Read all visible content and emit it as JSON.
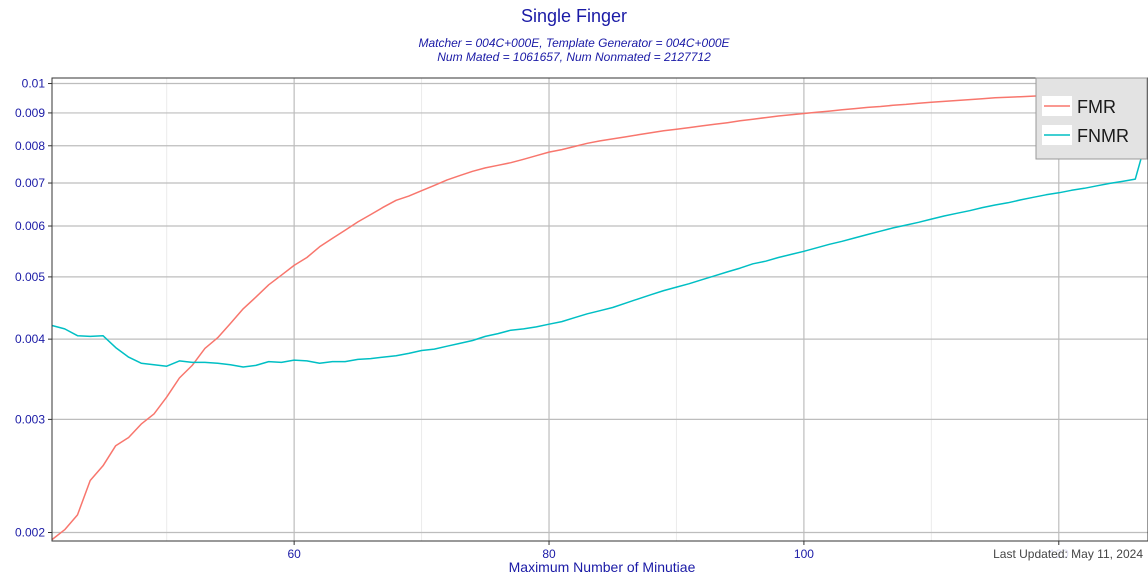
{
  "chart_data": {
    "type": "line",
    "title": "Single Finger",
    "subtitle_lines": [
      "Matcher = 004C+000E, Template Generator = 004C+000E",
      "Num Mated = 1061657, Num Nonmated = 2127712"
    ],
    "xlabel": "Maximum Number of Minutiae",
    "ylabel": "",
    "y_scale": "log",
    "xlim": [
      41,
      127
    ],
    "ylim": [
      0.00194,
      0.0102
    ],
    "x_ticks": [
      60,
      80,
      100,
      120
    ],
    "y_ticks": [
      0.002,
      0.003,
      0.004,
      0.005,
      0.006,
      0.007,
      0.008,
      0.009,
      0.01
    ],
    "y_tick_labels": [
      "0.002",
      "0.003",
      "0.004",
      "0.005",
      "0.006",
      "0.007",
      "0.008",
      "0.009",
      "0.01"
    ],
    "x_tick_labels": [
      "60",
      "80",
      "100",
      "120"
    ],
    "grid": true,
    "legend_position": "top-right",
    "annotation": "Last Updated: May 11, 2024",
    "series": [
      {
        "name": "FMR",
        "color": "#f8766d",
        "x": [
          41,
          42,
          43,
          44,
          45,
          46,
          47,
          48,
          49,
          50,
          51,
          52,
          53,
          54,
          55,
          56,
          57,
          58,
          59,
          60,
          61,
          62,
          63,
          64,
          65,
          66,
          67,
          68,
          69,
          70,
          71,
          72,
          73,
          74,
          75,
          76,
          77,
          78,
          79,
          80,
          81,
          82,
          83,
          84,
          85,
          86,
          87,
          88,
          89,
          90,
          91,
          92,
          93,
          94,
          95,
          96,
          97,
          98,
          99,
          100,
          101,
          102,
          103,
          104,
          105,
          106,
          107,
          108,
          109,
          110,
          111,
          112,
          113,
          114,
          115,
          116,
          117,
          118,
          119,
          120,
          121,
          122,
          123,
          124,
          125,
          126,
          127
        ],
        "values": [
          0.00195,
          0.00202,
          0.00213,
          0.00241,
          0.00254,
          0.00273,
          0.00281,
          0.00295,
          0.00306,
          0.00325,
          0.00348,
          0.00364,
          0.00387,
          0.00402,
          0.00423,
          0.00446,
          0.00465,
          0.00486,
          0.00503,
          0.00521,
          0.00536,
          0.00557,
          0.00574,
          0.00591,
          0.00609,
          0.00625,
          0.00642,
          0.00658,
          0.00668,
          0.00681,
          0.00694,
          0.00708,
          0.00719,
          0.0073,
          0.00739,
          0.00746,
          0.00753,
          0.00762,
          0.00772,
          0.00782,
          0.00789,
          0.00798,
          0.00807,
          0.00814,
          0.0082,
          0.00826,
          0.00832,
          0.00838,
          0.00844,
          0.00849,
          0.00854,
          0.00859,
          0.00864,
          0.00869,
          0.00875,
          0.0088,
          0.00885,
          0.0089,
          0.00894,
          0.00898,
          0.00902,
          0.00906,
          0.0091,
          0.00914,
          0.00918,
          0.00921,
          0.00925,
          0.00928,
          0.00932,
          0.00935,
          0.00938,
          0.00941,
          0.00944,
          0.00947,
          0.0095,
          0.00952,
          0.00954,
          0.00956,
          0.00958,
          0.0096,
          0.00962,
          0.00964,
          0.00966,
          0.00968,
          0.0097,
          0.00972,
          0.00974
        ]
      },
      {
        "name": "FNMR",
        "color": "#00bfc4",
        "x": [
          41,
          42,
          43,
          44,
          45,
          46,
          47,
          48,
          49,
          50,
          51,
          52,
          53,
          54,
          55,
          56,
          57,
          58,
          59,
          60,
          61,
          62,
          63,
          64,
          65,
          66,
          67,
          68,
          69,
          70,
          71,
          72,
          73,
          74,
          75,
          76,
          77,
          78,
          79,
          80,
          81,
          82,
          83,
          84,
          85,
          86,
          87,
          88,
          89,
          90,
          91,
          92,
          93,
          94,
          95,
          96,
          97,
          98,
          99,
          100,
          101,
          102,
          103,
          104,
          105,
          106,
          107,
          108,
          109,
          110,
          111,
          112,
          113,
          114,
          115,
          116,
          117,
          118,
          119,
          120,
          121,
          122,
          123,
          124,
          125,
          126,
          127
        ],
        "values": [
          0.0042,
          0.00415,
          0.00405,
          0.00404,
          0.00405,
          0.00388,
          0.00375,
          0.00367,
          0.00365,
          0.00363,
          0.0037,
          0.00368,
          0.00368,
          0.00367,
          0.00365,
          0.00362,
          0.00364,
          0.00369,
          0.00368,
          0.00371,
          0.0037,
          0.00367,
          0.00369,
          0.00369,
          0.00372,
          0.00373,
          0.00375,
          0.00377,
          0.0038,
          0.00384,
          0.00386,
          0.0039,
          0.00394,
          0.00398,
          0.00404,
          0.00408,
          0.00413,
          0.00415,
          0.00418,
          0.00422,
          0.00426,
          0.00432,
          0.00438,
          0.00443,
          0.00448,
          0.00455,
          0.00462,
          0.00469,
          0.00476,
          0.00482,
          0.00488,
          0.00495,
          0.00502,
          0.00509,
          0.00516,
          0.00524,
          0.00529,
          0.00536,
          0.00542,
          0.00548,
          0.00555,
          0.00562,
          0.00568,
          0.00575,
          0.00582,
          0.00589,
          0.00596,
          0.00602,
          0.00608,
          0.00615,
          0.00622,
          0.00628,
          0.00634,
          0.00641,
          0.00647,
          0.00652,
          0.00659,
          0.00665,
          0.00671,
          0.00676,
          0.00682,
          0.00687,
          0.00693,
          0.00699,
          0.00704,
          0.0071,
          0.00835
        ]
      }
    ]
  }
}
